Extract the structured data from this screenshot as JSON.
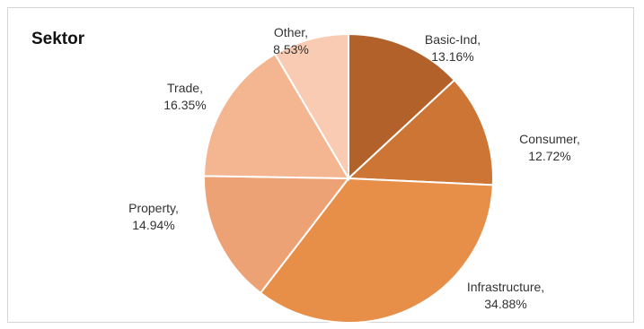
{
  "chart_data": {
    "type": "pie",
    "title": "Sektor",
    "slices": [
      {
        "name": "Basic-Ind",
        "value": 13.16,
        "label": "Basic-Ind,",
        "value_label": "13.16%",
        "color": "#b3612a"
      },
      {
        "name": "Consumer",
        "value": 12.72,
        "label": "Consumer,",
        "value_label": "12.72%",
        "color": "#cd7535"
      },
      {
        "name": "Infrastructure",
        "value": 34.88,
        "label": "Infrastructure,",
        "value_label": "34.88%",
        "color": "#e78e49"
      },
      {
        "name": "Property",
        "value": 14.94,
        "label": "Property,",
        "value_label": "14.94%",
        "color": "#eca274"
      },
      {
        "name": "Trade",
        "value": 16.35,
        "label": "Trade,",
        "value_label": "16.35%",
        "color": "#f3b690"
      },
      {
        "name": "Other",
        "value": 8.53,
        "label": "Other,",
        "value_label": "8.53%",
        "color": "#f8cbb2"
      }
    ]
  }
}
